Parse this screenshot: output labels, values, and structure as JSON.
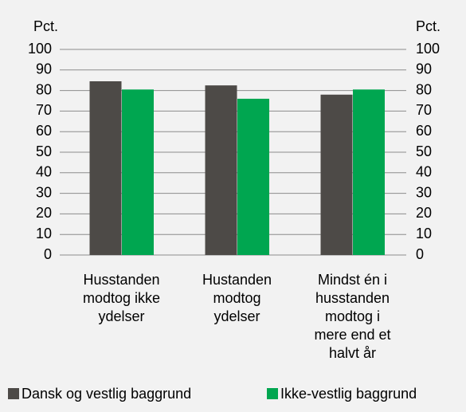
{
  "chart_data": {
    "type": "bar",
    "ylabel": "Pct.",
    "y2label": "Pct.",
    "categories": [
      [
        "Husstanden",
        "modtog ikke",
        "ydelser"
      ],
      [
        "Hustanden",
        "modtog",
        "ydelser"
      ],
      [
        "Mindst én i",
        "husstanden",
        "modtog i",
        "mere end et",
        "halvt år"
      ]
    ],
    "series": [
      {
        "name": "Dansk og vestlig baggrund",
        "color": "#4d4a47",
        "values": [
          84.5,
          82.5,
          78
        ]
      },
      {
        "name": "Ikke-vestlig baggrund",
        "color": "#00a650",
        "values": [
          80.5,
          76,
          80.5
        ]
      }
    ],
    "ylim": [
      0,
      100
    ],
    "yticks": [
      0,
      10,
      20,
      30,
      40,
      50,
      60,
      70,
      80,
      90,
      100
    ],
    "y2lim": [
      0,
      100
    ],
    "y2ticks": [
      0,
      10,
      20,
      30,
      40,
      50,
      60,
      70,
      80,
      90,
      100
    ],
    "grid": true,
    "legend": "bottom"
  }
}
